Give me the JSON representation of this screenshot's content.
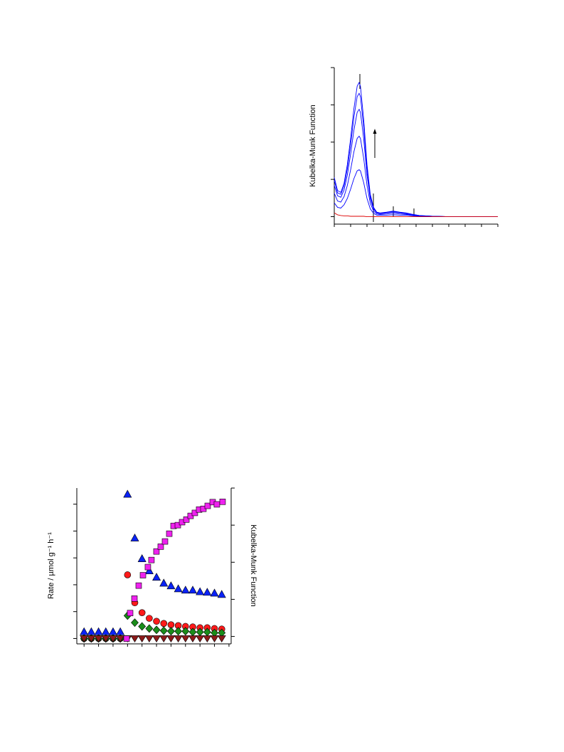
{
  "chart_data": [
    {
      "type": "line",
      "y_label": "Kubelka-Munk Function",
      "x": [
        300,
        310,
        320,
        330,
        340,
        350,
        360,
        370,
        376,
        380,
        390,
        400,
        410,
        420,
        430,
        440,
        460,
        480,
        500,
        520,
        540,
        560,
        600,
        650,
        700,
        750,
        800
      ],
      "xlim": [
        300,
        800
      ],
      "xticks": [
        300,
        350,
        400,
        450,
        500,
        550,
        600,
        650,
        700,
        750,
        800
      ],
      "ylim": [
        -0.2,
        4.0
      ],
      "yticks": [
        0,
        1,
        2,
        3,
        4
      ],
      "series": [
        {
          "color": "#0000ff",
          "values": [
            0.37,
            0.25,
            0.23,
            0.32,
            0.49,
            0.74,
            1.02,
            1.23,
            1.26,
            1.23,
            0.91,
            0.49,
            0.21,
            0.09,
            0.04,
            0.04,
            0.04,
            0.05,
            0.04,
            0.04,
            0.02,
            0.01,
            0,
            0,
            0,
            0,
            0
          ]
        },
        {
          "color": "#0000ff",
          "values": [
            0.63,
            0.42,
            0.39,
            0.54,
            0.84,
            1.26,
            1.74,
            2.1,
            2.16,
            2.1,
            1.56,
            0.84,
            0.36,
            0.15,
            0.07,
            0.06,
            0.07,
            0.09,
            0.07,
            0.06,
            0.04,
            0.02,
            0.01,
            0,
            0,
            0,
            0
          ]
        },
        {
          "color": "#0000ff",
          "values": [
            0.84,
            0.56,
            0.52,
            0.72,
            1.12,
            1.68,
            2.32,
            2.8,
            2.88,
            2.8,
            2.08,
            1.12,
            0.48,
            0.2,
            0.1,
            0.08,
            0.1,
            0.12,
            0.1,
            0.08,
            0.05,
            0.02,
            0.01,
            0,
            0,
            0,
            0
          ]
        },
        {
          "color": "#0000ff",
          "values": [
            0.97,
            0.64,
            0.6,
            0.83,
            1.29,
            1.93,
            2.67,
            3.22,
            3.31,
            3.22,
            2.39,
            1.29,
            0.55,
            0.23,
            0.11,
            0.09,
            0.11,
            0.14,
            0.11,
            0.09,
            0.06,
            0.03,
            0.01,
            0,
            0,
            0,
            0
          ]
        },
        {
          "color": "#0000ff",
          "values": [
            1.05,
            0.7,
            0.65,
            0.9,
            1.4,
            2.1,
            2.9,
            3.5,
            3.6,
            3.5,
            2.6,
            1.4,
            0.6,
            0.25,
            0.12,
            0.1,
            0.12,
            0.15,
            0.12,
            0.1,
            0.06,
            0.03,
            0.01,
            0,
            0,
            0,
            0
          ]
        },
        {
          "color": "#dd0000",
          "values": [
            0.1,
            0.05,
            0.03,
            0.02,
            0.02,
            0.01,
            0.01,
            0.01,
            0.01,
            0.01,
            0.01,
            0,
            0,
            0,
            0,
            0,
            0,
            0,
            0,
            0,
            0,
            0,
            0,
            0,
            0,
            0,
            0
          ]
        }
      ]
    },
    {
      "type": "scatter",
      "y_label": "Rate / µmol g⁻¹ h⁻¹",
      "y2_label": "Kubelka-Munk Function",
      "xlim": [
        -1,
        20.3
      ],
      "xticks": [
        0,
        2,
        4,
        6,
        8,
        10,
        12,
        14,
        16,
        18,
        20
      ],
      "ylim": [
        -0.2,
        5.6
      ],
      "yticks": [
        0,
        1,
        2,
        3,
        4,
        5
      ],
      "y2lim": [
        -0.2,
        4.0
      ],
      "y2ticks": [
        0,
        1,
        2,
        3,
        4
      ],
      "series": [
        {
          "marker": "triangle-up",
          "color": "#0a22f5",
          "x": [
            0,
            1,
            2,
            3,
            4,
            5,
            6,
            7,
            8,
            9,
            10,
            11,
            12,
            13,
            14,
            15,
            16,
            17,
            18,
            19
          ],
          "values": [
            0.24,
            0.24,
            0.24,
            0.24,
            0.24,
            0.24,
            5.36,
            3.73,
            2.96,
            2.51,
            2.27,
            2.05,
            1.95,
            1.84,
            1.79,
            1.79,
            1.73,
            1.71,
            1.68,
            1.63
          ]
        },
        {
          "marker": "circle",
          "color": "#ff1a1a",
          "x": [
            0,
            1,
            2,
            3,
            4,
            5,
            6,
            7,
            8,
            9,
            10,
            11,
            12,
            13,
            14,
            15,
            16,
            17,
            18,
            19
          ],
          "values": [
            0,
            0,
            0,
            0,
            0,
            0,
            2.37,
            1.33,
            0.96,
            0.75,
            0.64,
            0.56,
            0.51,
            0.48,
            0.45,
            0.43,
            0.4,
            0.4,
            0.37,
            0.35
          ]
        },
        {
          "marker": "diamond",
          "color": "#1a8c1a",
          "x": [
            0,
            1,
            2,
            3,
            4,
            5,
            6,
            7,
            8,
            9,
            10,
            11,
            12,
            13,
            14,
            15,
            16,
            17,
            18,
            19
          ],
          "values": [
            0,
            0,
            0,
            0,
            0,
            0,
            0.85,
            0.59,
            0.45,
            0.37,
            0.32,
            0.29,
            0.27,
            0.27,
            0.27,
            0.24,
            0.24,
            0.24,
            0.21,
            0.21
          ]
        },
        {
          "marker": "triangle-down",
          "color": "#8b1a1a",
          "x": [
            0,
            1,
            2,
            3,
            4,
            5,
            6,
            7,
            8,
            9,
            10,
            11,
            12,
            13,
            14,
            15,
            16,
            17,
            18,
            19
          ],
          "values": [
            0,
            0,
            0,
            0,
            0,
            0,
            0,
            0,
            0,
            0,
            0,
            0,
            0,
            0,
            0,
            0,
            0,
            0,
            0,
            0
          ]
        },
        {
          "marker": "square",
          "color": "#ee22ee",
          "axis": "y2",
          "x": [
            5.87,
            6.36,
            6.95,
            7.54,
            8.13,
            8.81,
            9.3,
            9.99,
            10.58,
            11.17,
            11.76,
            12.35,
            12.94,
            13.53,
            14.12,
            14.7,
            15.29,
            15.88,
            16.47,
            17.06,
            17.75,
            18.33,
            19.12
          ],
          "values": [
            -0.06,
            0.63,
            1.02,
            1.37,
            1.65,
            1.87,
            2.06,
            2.29,
            2.42,
            2.56,
            2.77,
            2.98,
            3.0,
            3.08,
            3.15,
            3.25,
            3.33,
            3.42,
            3.44,
            3.52,
            3.62,
            3.56,
            3.63
          ]
        }
      ]
    }
  ]
}
